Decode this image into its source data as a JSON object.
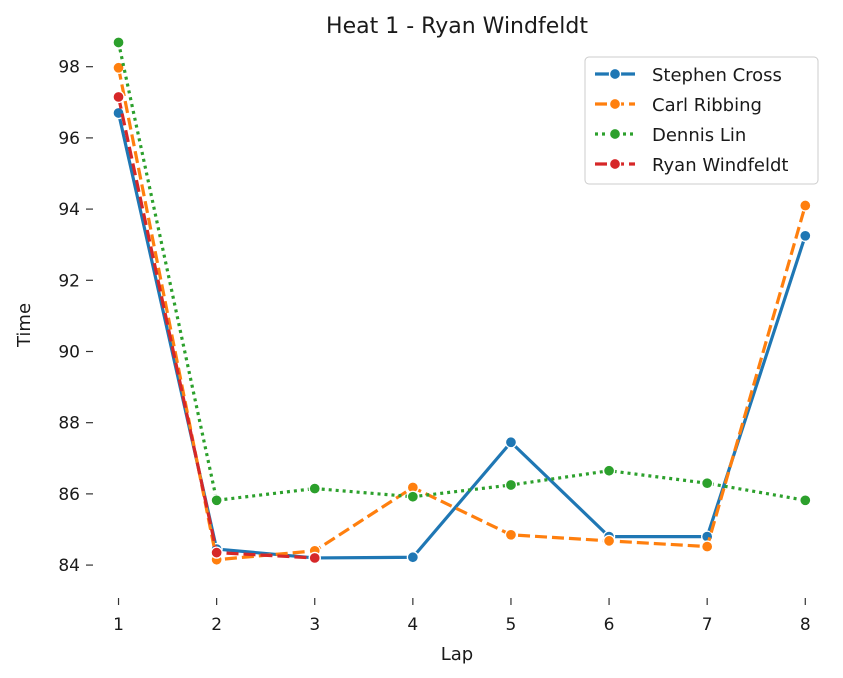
{
  "chart_data": {
    "type": "line",
    "title": "Heat 1 - Ryan Windfeldt",
    "xlabel": "Lap",
    "ylabel": "Time",
    "x": [
      1,
      2,
      3,
      4,
      5,
      6,
      7,
      8
    ],
    "xlim": [
      0.75,
      8.15
    ],
    "ylim": [
      83.3,
      98.75
    ],
    "yticks": [
      84,
      86,
      88,
      90,
      92,
      94,
      96,
      98
    ],
    "grid": false,
    "legend_position": "top-right",
    "series": [
      {
        "name": "Stephen Cross",
        "color": "#1f77b4",
        "dash": "solid",
        "values": [
          96.7,
          84.45,
          84.2,
          84.22,
          87.45,
          84.8,
          84.8,
          93.25
        ]
      },
      {
        "name": "Carl Ribbing",
        "color": "#ff7f0e",
        "dash": "dashed",
        "values": [
          97.97,
          84.15,
          84.4,
          86.18,
          84.85,
          84.68,
          84.52,
          94.1
        ]
      },
      {
        "name": "Dennis Lin",
        "color": "#2ca02c",
        "dash": "dotted",
        "values": [
          98.68,
          85.82,
          86.15,
          85.92,
          86.25,
          86.65,
          86.3,
          85.82
        ]
      },
      {
        "name": "Ryan Windfeldt",
        "color": "#d62728",
        "dash": "dashed",
        "values": [
          97.15,
          84.35,
          84.2,
          null,
          null,
          null,
          null,
          null
        ]
      }
    ]
  }
}
